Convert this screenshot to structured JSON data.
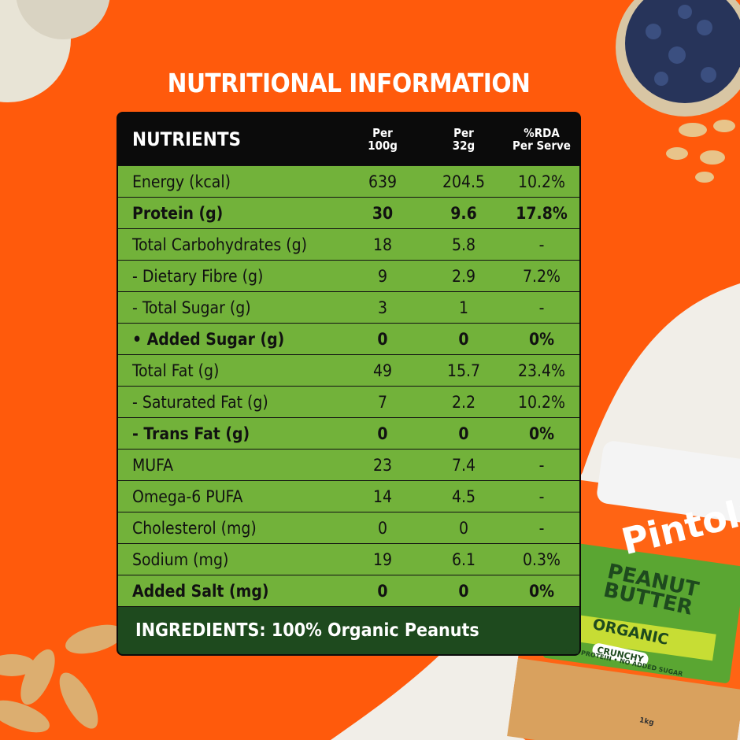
{
  "title": "NUTRITIONAL INFORMATION",
  "table": {
    "header": {
      "name": "NUTRIENTS",
      "columns": [
        [
          "Per",
          "100g"
        ],
        [
          "Per",
          "32g"
        ],
        [
          "%RDA",
          "Per Serve"
        ]
      ]
    },
    "rows": [
      {
        "cells": [
          "Energy (kcal)",
          "639",
          "204.5",
          "10.2%"
        ],
        "bold": false
      },
      {
        "cells": [
          "Protein (g)",
          "30",
          "9.6",
          "17.8%"
        ],
        "bold": true
      },
      {
        "cells": [
          "Total Carbohydrates (g)",
          "18",
          "5.8",
          "-"
        ],
        "bold": false
      },
      {
        "cells": [
          "- Dietary Fibre (g)",
          "9",
          "2.9",
          "7.2%"
        ],
        "bold": false
      },
      {
        "cells": [
          "- Total Sugar (g)",
          "3",
          "1",
          "-"
        ],
        "bold": false
      },
      {
        "cells": [
          "• Added Sugar (g)",
          "0",
          "0",
          "0%"
        ],
        "bold": true
      },
      {
        "cells": [
          "Total Fat (g)",
          "49",
          "15.7",
          "23.4%"
        ],
        "bold": false
      },
      {
        "cells": [
          "- Saturated Fat (g)",
          "7",
          "2.2",
          "10.2%"
        ],
        "bold": false
      },
      {
        "cells": [
          "- Trans Fat (g)",
          "0",
          "0",
          "0%"
        ],
        "bold": true
      },
      {
        "cells": [
          "MUFA",
          "23",
          "7.4",
          "-"
        ],
        "bold": false
      },
      {
        "cells": [
          "Omega-6 PUFA",
          "14",
          "4.5",
          "-"
        ],
        "bold": false
      },
      {
        "cells": [
          "Cholesterol (mg)",
          "0",
          "0",
          "-"
        ],
        "bold": false
      },
      {
        "cells": [
          "Sodium (mg)",
          "19",
          "6.1",
          "0.3%"
        ],
        "bold": false
      },
      {
        "cells": [
          "Added Salt (mg)",
          "0",
          "0",
          "0%"
        ],
        "bold": true
      }
    ]
  },
  "ingredients": "INGREDIENTS: 100% Organic Peanuts",
  "jar": {
    "brand": "Pintola",
    "product": "PEANUT BUTTER",
    "variant": "ORGANIC",
    "texture": "CRUNCHY",
    "claims": "30% PROTEIN • NO ADDED SUGAR",
    "weight": "1kg"
  }
}
